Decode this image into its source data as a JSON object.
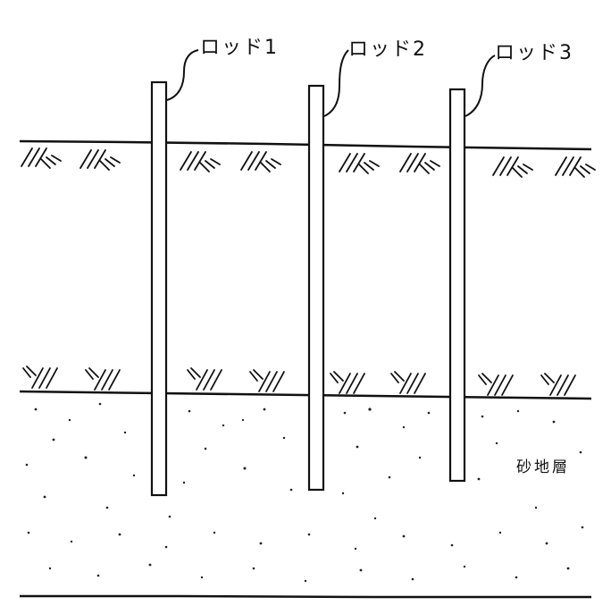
{
  "diagram": {
    "rods": [
      {
        "label": "ロッド1"
      },
      {
        "label": "ロッド2"
      },
      {
        "label": "ロッド3"
      }
    ],
    "sand_layer_label": "砂地層"
  }
}
